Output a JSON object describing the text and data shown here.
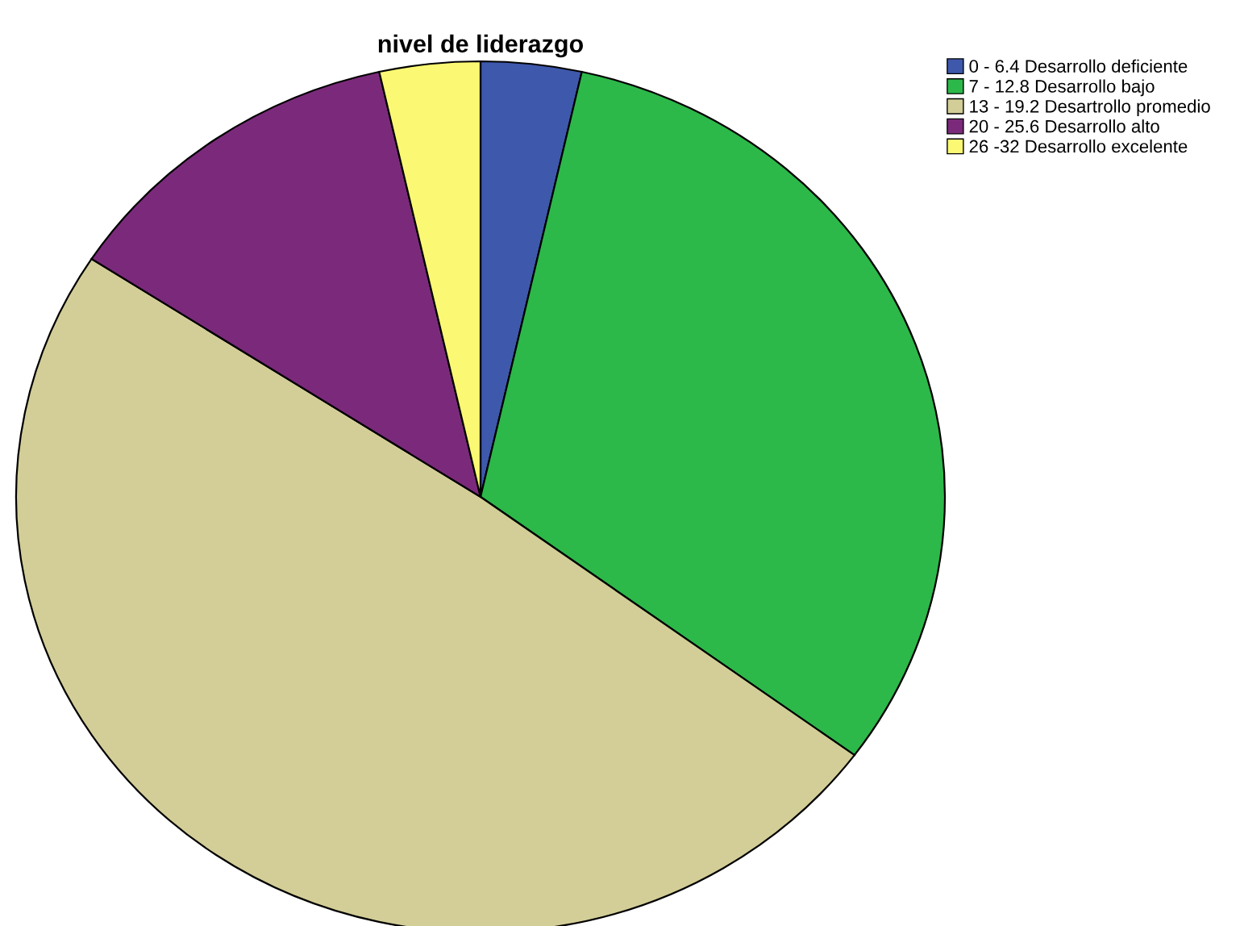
{
  "chart_data": {
    "type": "pie",
    "title": "nivel de liderazgo",
    "categories": [
      "0 - 6.4 Desarrollo deficiente",
      "7 - 12.8 Desarrollo bajo",
      "13 - 19.2 Desartrollo promedio",
      "20 - 25.6 Desarrollo alto",
      "26 -32 Desarrollo excelente"
    ],
    "values": [
      3.5,
      31.6,
      49.1,
      12.3,
      3.5
    ],
    "colors": [
      "#3e58ac",
      "#2db84a",
      "#d3ce97",
      "#7b2a7b",
      "#fbf873"
    ],
    "legend": "top right"
  }
}
